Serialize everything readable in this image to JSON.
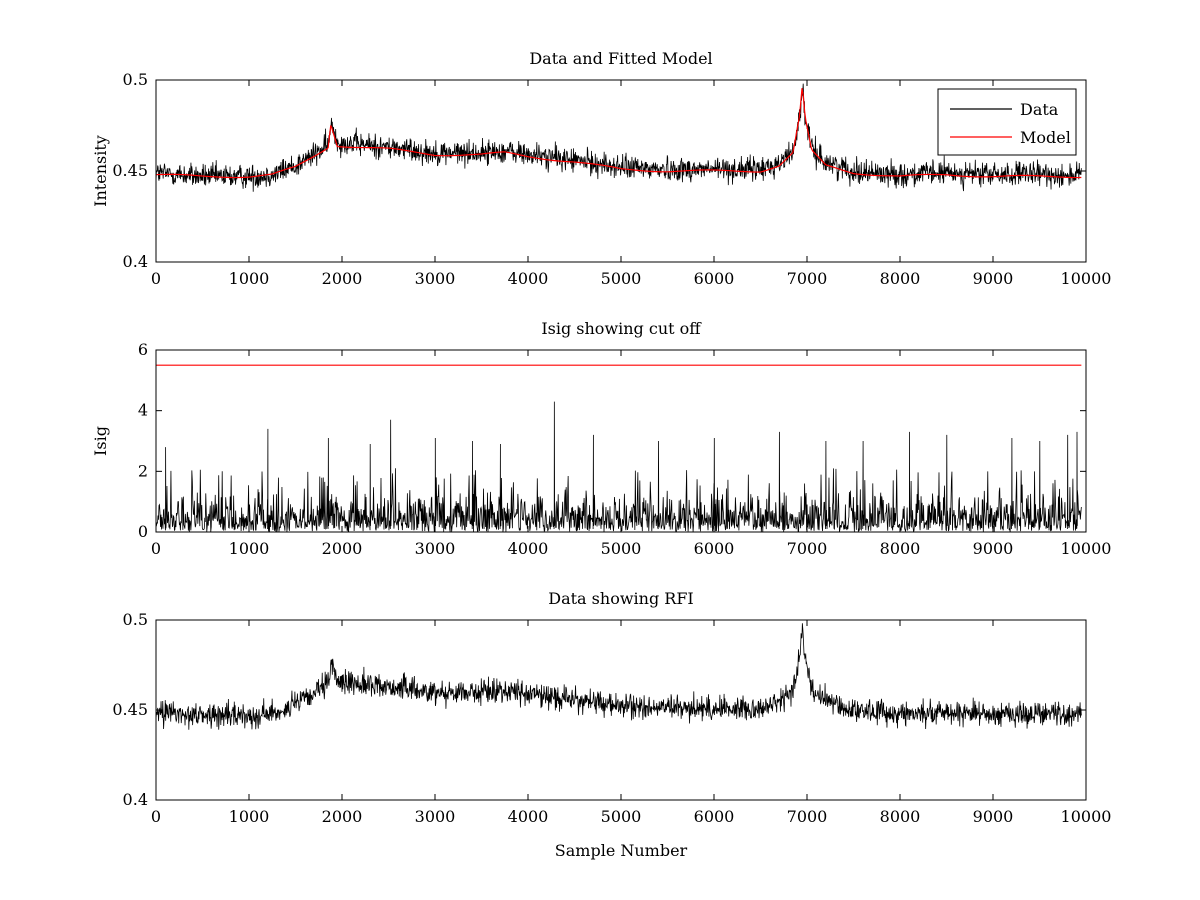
{
  "chart_data": [
    {
      "type": "line",
      "title": "Data and Fitted Model",
      "xlabel": "",
      "ylabel": "Intensity",
      "xlim": [
        0,
        10000
      ],
      "ylim": [
        0.4,
        0.5
      ],
      "xticks": [
        "0",
        "1000",
        "2000",
        "3000",
        "4000",
        "5000",
        "6000",
        "7000",
        "8000",
        "9000",
        "10000"
      ],
      "yticks": [
        "0.4",
        "0.45",
        "0.5"
      ],
      "grid": false,
      "legend": {
        "position": "top-right",
        "entries": [
          "Data",
          "Model"
        ]
      },
      "series": [
        {
          "name": "Data",
          "color": "#000000",
          "noise_amplitude": 0.006,
          "x": [
            0,
            500,
            1000,
            1250,
            1500,
            1700,
            1850,
            1890,
            1950,
            2500,
            3000,
            3500,
            3750,
            4000,
            4500,
            5000,
            5500,
            6000,
            6500,
            6700,
            6850,
            6920,
            6950,
            6980,
            7050,
            7200,
            7500,
            8000,
            8500,
            9000,
            9500,
            9950
          ],
          "y": [
            0.449,
            0.447,
            0.447,
            0.448,
            0.453,
            0.459,
            0.464,
            0.476,
            0.466,
            0.463,
            0.46,
            0.46,
            0.461,
            0.459,
            0.456,
            0.452,
            0.451,
            0.451,
            0.451,
            0.454,
            0.461,
            0.48,
            0.495,
            0.479,
            0.462,
            0.455,
            0.45,
            0.448,
            0.449,
            0.448,
            0.448,
            0.448
          ]
        },
        {
          "name": "Model",
          "color": "#ff0000",
          "x": [
            0,
            500,
            1000,
            1250,
            1500,
            1700,
            1850,
            1880,
            1950,
            2500,
            3000,
            3500,
            3750,
            4000,
            4500,
            5000,
            5500,
            6000,
            6500,
            6700,
            6850,
            6920,
            6950,
            6980,
            7050,
            7200,
            7500,
            8000,
            8500,
            9000,
            9500,
            9950
          ],
          "y": [
            0.448,
            0.447,
            0.447,
            0.448,
            0.452,
            0.458,
            0.463,
            0.476,
            0.464,
            0.462,
            0.459,
            0.459,
            0.46,
            0.458,
            0.455,
            0.451,
            0.45,
            0.45,
            0.45,
            0.453,
            0.46,
            0.48,
            0.497,
            0.479,
            0.461,
            0.453,
            0.449,
            0.447,
            0.448,
            0.447,
            0.447,
            0.447
          ]
        }
      ]
    },
    {
      "type": "line",
      "title": "Isig showing cut off",
      "xlabel": "",
      "ylabel": "Isig",
      "xlim": [
        0,
        10000
      ],
      "ylim": [
        0,
        6
      ],
      "xticks": [
        "0",
        "1000",
        "2000",
        "3000",
        "4000",
        "5000",
        "6000",
        "7000",
        "8000",
        "9000",
        "10000"
      ],
      "yticks": [
        "0",
        "2",
        "4",
        "6"
      ],
      "grid": false,
      "series": [
        {
          "color": "#000000",
          "kind": "noise",
          "typical_max": 2.0,
          "spikes": [
            [
              100,
              2.8
            ],
            [
              1200,
              3.4
            ],
            [
              1850,
              3.1
            ],
            [
              2300,
              2.9
            ],
            [
              2520,
              3.7
            ],
            [
              3000,
              3.1
            ],
            [
              3400,
              3.0
            ],
            [
              3700,
              2.9
            ],
            [
              4280,
              4.3
            ],
            [
              4700,
              3.2
            ],
            [
              5400,
              3.0
            ],
            [
              6000,
              3.1
            ],
            [
              6700,
              3.3
            ],
            [
              7200,
              3.0
            ],
            [
              7600,
              3.0
            ],
            [
              8100,
              3.3
            ],
            [
              8500,
              3.2
            ],
            [
              9200,
              3.1
            ],
            [
              9500,
              3.0
            ],
            [
              9800,
              3.2
            ],
            [
              9900,
              3.3
            ]
          ]
        },
        {
          "color": "#ff0000",
          "kind": "constant",
          "x": [
            0,
            9950
          ],
          "y": [
            5.5,
            5.5
          ]
        }
      ]
    },
    {
      "type": "line",
      "title": "Data showing RFI",
      "xlabel": "Sample Number",
      "ylabel": "",
      "xlim": [
        0,
        10000
      ],
      "ylim": [
        0.4,
        0.5
      ],
      "xticks": [
        "0",
        "1000",
        "2000",
        "3000",
        "4000",
        "5000",
        "6000",
        "7000",
        "8000",
        "9000",
        "10000"
      ],
      "yticks": [
        "0.4",
        "0.45",
        "0.5"
      ],
      "grid": false,
      "series": [
        {
          "color": "#000000",
          "noise_amplitude": 0.006,
          "x": [
            0,
            500,
            1000,
            1250,
            1500,
            1700,
            1850,
            1890,
            1950,
            2500,
            3000,
            3500,
            3750,
            4000,
            4500,
            5000,
            5500,
            6000,
            6500,
            6700,
            6850,
            6920,
            6950,
            6980,
            7050,
            7200,
            7500,
            8000,
            8500,
            9000,
            9500,
            9950
          ],
          "y": [
            0.449,
            0.447,
            0.447,
            0.448,
            0.453,
            0.459,
            0.464,
            0.476,
            0.466,
            0.463,
            0.46,
            0.46,
            0.461,
            0.459,
            0.456,
            0.452,
            0.451,
            0.451,
            0.451,
            0.454,
            0.461,
            0.48,
            0.495,
            0.479,
            0.462,
            0.455,
            0.45,
            0.448,
            0.449,
            0.448,
            0.448,
            0.448
          ]
        }
      ]
    }
  ]
}
